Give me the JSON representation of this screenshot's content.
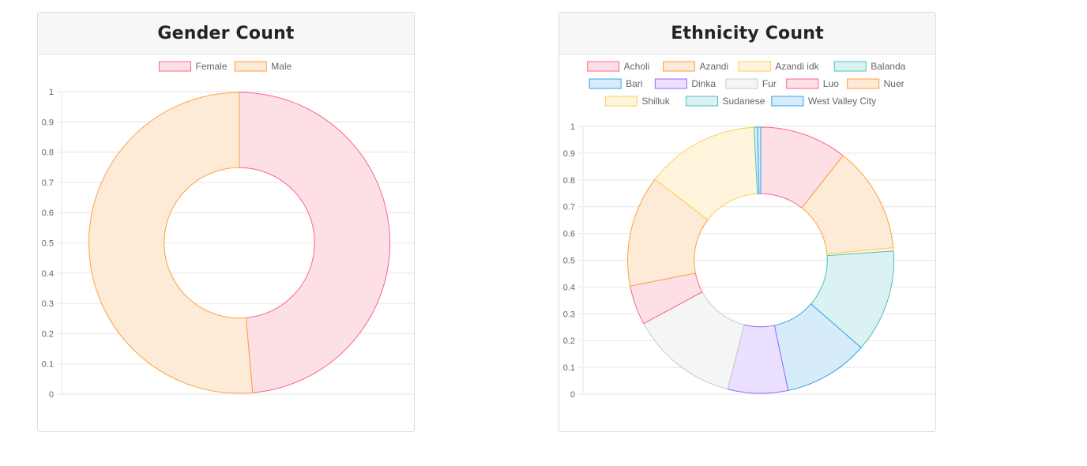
{
  "chart_data": [
    {
      "type": "doughnut",
      "title": "Gender Count",
      "categories": [
        "Female",
        "Male"
      ],
      "values": [
        48.6,
        51.4
      ],
      "colors": {
        "Female": {
          "fill": "#fde0e6",
          "stroke": "#ff6384"
        },
        "Male": {
          "fill": "#fdebd7",
          "stroke": "#ff9f40"
        }
      },
      "ylim": [
        0,
        1
      ],
      "yticks": [
        "0",
        "0.1",
        "0.2",
        "0.3",
        "0.4",
        "0.5",
        "0.6",
        "0.7",
        "0.8",
        "0.9",
        "1"
      ],
      "grid": true,
      "legend": "top"
    },
    {
      "type": "doughnut",
      "title": "Ethnicity Count",
      "categories": [
        "Acholi",
        "Azandi",
        "Azandi idk",
        "Balanda",
        "Bari",
        "Dinka",
        "Fur",
        "Luo",
        "Nuer",
        "Shilluk",
        "Sudanese",
        "West Valley City"
      ],
      "values": [
        10.6,
        12.9,
        0.4,
        12.5,
        10.3,
        7.3,
        13.1,
        4.8,
        13.5,
        13.8,
        0.4,
        0.4
      ],
      "colors": {
        "Acholi": {
          "fill": "#fde0e6",
          "stroke": "#ff6384"
        },
        "Azandi": {
          "fill": "#fdebd7",
          "stroke": "#ff9f40"
        },
        "Azandi idk": {
          "fill": "#fff5dd",
          "stroke": "#ffcd56"
        },
        "Balanda": {
          "fill": "#dbf2f2",
          "stroke": "#4bc0c0"
        },
        "Bari": {
          "fill": "#d7ecfb",
          "stroke": "#36a2eb"
        },
        "Dinka": {
          "fill": "#ebe0ff",
          "stroke": "#9966ff"
        },
        "Fur": {
          "fill": "#f4f5f5",
          "stroke": "#c9cbcf"
        },
        "Luo": {
          "fill": "#fde0e6",
          "stroke": "#ff6384"
        },
        "Nuer": {
          "fill": "#fdebd7",
          "stroke": "#ff9f40"
        },
        "Shilluk": {
          "fill": "#fff5dd",
          "stroke": "#ffcd56"
        },
        "Sudanese": {
          "fill": "#dbf2f2",
          "stroke": "#4bc0c0"
        },
        "West Valley City": {
          "fill": "#d7ecfb",
          "stroke": "#36a2eb"
        }
      },
      "ylim": [
        0,
        1
      ],
      "yticks": [
        "0",
        "0.1",
        "0.2",
        "0.3",
        "0.4",
        "0.5",
        "0.6",
        "0.7",
        "0.8",
        "0.9",
        "1"
      ],
      "grid": true,
      "legend": "top"
    }
  ]
}
